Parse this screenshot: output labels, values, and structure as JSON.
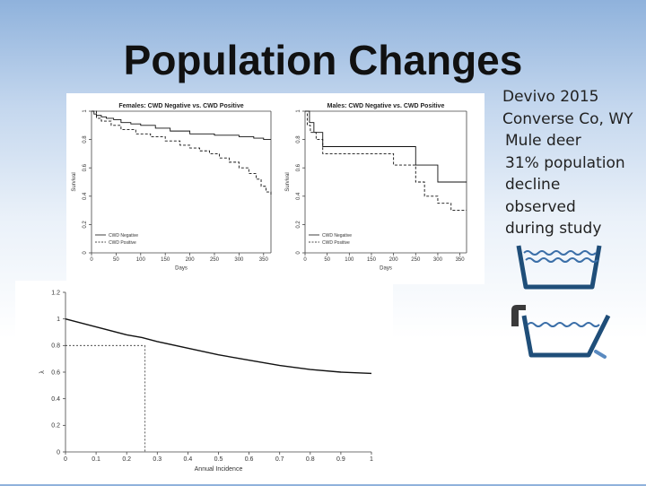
{
  "slide": {
    "title": "Population Changes",
    "notes": [
      "Devivo 2015",
      "Converse Co, WY",
      "Mule deer",
      "31% population",
      "decline",
      "observed",
      "during study"
    ]
  },
  "colors": {
    "line": "#111111",
    "tub": "#1f4e79",
    "tub_accent": "#3b6fa8",
    "tap": "#3a3a3a"
  },
  "icons": [
    "bathtub-icon",
    "bathtub-with-faucet-icon"
  ],
  "chart_data": [
    {
      "type": "line",
      "title": "Females: CWD Negative vs. CWD Positive",
      "xlabel": "Days",
      "ylabel": "Survival",
      "xlim": [
        0,
        365
      ],
      "ylim": [
        0,
        1
      ],
      "xticks": [
        0,
        50,
        100,
        150,
        200,
        250,
        300,
        350
      ],
      "yticks": [
        0,
        0.2,
        0.4,
        0.6,
        0.8,
        1.0
      ],
      "legend": {
        "position": "bottom-left",
        "entries": [
          "CWD Negative",
          "CWD Positive"
        ]
      },
      "series": [
        {
          "name": "CWD Negative",
          "style": "solid",
          "step": true,
          "x": [
            0,
            5,
            10,
            20,
            30,
            45,
            60,
            80,
            100,
            130,
            160,
            200,
            250,
            300,
            330,
            350,
            365
          ],
          "y": [
            1.0,
            0.98,
            0.97,
            0.96,
            0.95,
            0.94,
            0.92,
            0.91,
            0.9,
            0.88,
            0.86,
            0.84,
            0.83,
            0.82,
            0.81,
            0.8,
            0.8
          ]
        },
        {
          "name": "CWD Positive",
          "style": "dashed",
          "step": true,
          "x": [
            0,
            10,
            20,
            40,
            60,
            90,
            120,
            150,
            180,
            200,
            220,
            240,
            260,
            280,
            300,
            320,
            335,
            345,
            355,
            365
          ],
          "y": [
            1.0,
            0.95,
            0.93,
            0.9,
            0.87,
            0.84,
            0.82,
            0.79,
            0.76,
            0.74,
            0.72,
            0.7,
            0.67,
            0.64,
            0.6,
            0.56,
            0.52,
            0.47,
            0.43,
            0.4
          ]
        }
      ]
    },
    {
      "type": "line",
      "title": "Males: CWD Negative vs. CWD Positive",
      "xlabel": "Days",
      "ylabel": "Survival",
      "xlim": [
        0,
        365
      ],
      "ylim": [
        0,
        1
      ],
      "xticks": [
        0,
        50,
        100,
        150,
        200,
        250,
        300,
        350
      ],
      "yticks": [
        0,
        0.2,
        0.4,
        0.6,
        0.8,
        1.0
      ],
      "legend": {
        "position": "bottom-left",
        "entries": [
          "CWD Negative",
          "CWD Positive"
        ]
      },
      "series": [
        {
          "name": "CWD Negative",
          "style": "solid",
          "step": true,
          "x": [
            0,
            10,
            20,
            40,
            250,
            300,
            365
          ],
          "y": [
            1.0,
            0.92,
            0.85,
            0.75,
            0.62,
            0.5,
            0.5
          ]
        },
        {
          "name": "CWD Positive",
          "style": "dashed",
          "step": true,
          "x": [
            0,
            5,
            12,
            25,
            40,
            200,
            250,
            270,
            300,
            330,
            365
          ],
          "y": [
            1.0,
            0.9,
            0.85,
            0.8,
            0.7,
            0.62,
            0.5,
            0.4,
            0.35,
            0.3,
            0.3
          ]
        }
      ]
    },
    {
      "type": "line",
      "title": "",
      "xlabel": "Annual Incidence",
      "ylabel": "λ",
      "xlim": [
        0,
        1
      ],
      "ylim": [
        0,
        1.2
      ],
      "xticks": [
        0,
        0.1,
        0.2,
        0.3,
        0.4,
        0.5,
        0.6,
        0.7,
        0.8,
        0.9,
        1
      ],
      "yticks": [
        0,
        0.2,
        0.4,
        0.6,
        0.8,
        1,
        1.2
      ],
      "series": [
        {
          "style": "solid",
          "x": [
            0,
            0.1,
            0.2,
            0.25,
            0.3,
            0.4,
            0.5,
            0.6,
            0.7,
            0.8,
            0.9,
            1.0
          ],
          "y": [
            1.0,
            0.94,
            0.88,
            0.86,
            0.83,
            0.78,
            0.73,
            0.69,
            0.65,
            0.62,
            0.6,
            0.59
          ]
        }
      ],
      "reference_lines": {
        "x": 0.26,
        "y": 0.8
      }
    }
  ]
}
